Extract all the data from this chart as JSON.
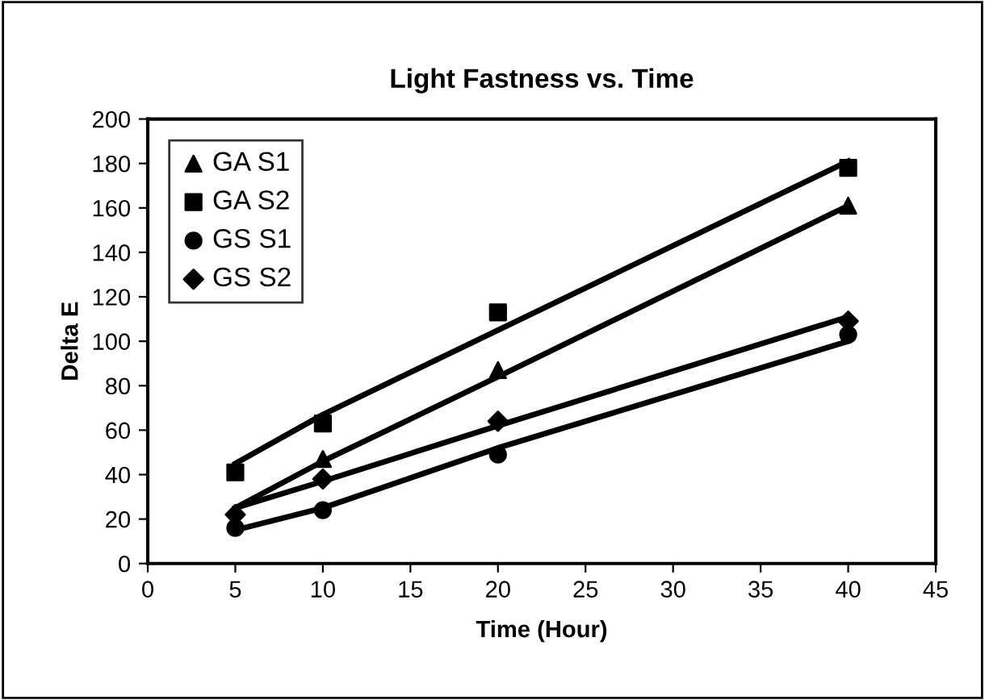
{
  "chart_data": {
    "type": "scatter",
    "title": "Light Fastness vs. Time",
    "xlabel": "Time (Hour)",
    "ylabel": "Delta E",
    "x": [
      5,
      10,
      20,
      40
    ],
    "series": [
      {
        "name": "GA S1",
        "color": "#000000",
        "marker": "triangle",
        "values": [
          null,
          47,
          87,
          161
        ]
      },
      {
        "name": "GA S2",
        "color": "#000000",
        "marker": "square",
        "values": [
          41,
          63,
          113,
          178
        ]
      },
      {
        "name": "GS S1",
        "color": "#000000",
        "marker": "circle",
        "values": [
          16,
          24,
          49,
          103
        ]
      },
      {
        "name": "GS S2",
        "color": "#000000",
        "marker": "diamond",
        "values": [
          22,
          38,
          64,
          109
        ]
      },
      {
        "type": "line",
        "color": "#000000",
        "marker": "none",
        "line_style": "solid",
        "x": [
          5,
          10,
          20,
          40
        ],
        "values": [
          25,
          46,
          84,
          161
        ]
      },
      {
        "type": "line",
        "color": "#000000",
        "marker": "none",
        "line_style": "solid",
        "x": [
          5,
          10,
          20,
          40
        ],
        "values": [
          45,
          67,
          105,
          181
        ]
      },
      {
        "type": "line",
        "color": "#000000",
        "marker": "none",
        "line_style": "solid",
        "x": [
          5,
          10,
          20,
          40
        ],
        "values": [
          15,
          25,
          52,
          100
        ]
      },
      {
        "type": "line",
        "color": "#000000",
        "marker": "none",
        "line_style": "solid",
        "x": [
          5,
          10,
          20,
          40
        ],
        "values": [
          25,
          37,
          62,
          111
        ]
      }
    ],
    "xlim": [
      0,
      45
    ],
    "xticks": [
      0,
      5,
      10,
      15,
      20,
      25,
      30,
      35,
      40,
      45
    ],
    "ylim": [
      0,
      200
    ],
    "yticks": [
      0,
      20,
      40,
      60,
      80,
      100,
      120,
      140,
      160,
      180,
      200
    ],
    "grid": false,
    "legend": "top left"
  }
}
